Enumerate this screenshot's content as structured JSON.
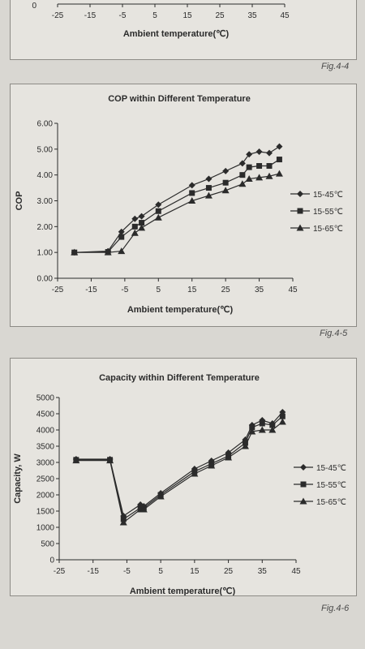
{
  "figures": [
    {
      "caption": "Fig.4-4"
    },
    {
      "caption": "Fig.4-5"
    },
    {
      "caption": "Fig.4-6"
    }
  ],
  "chart_data": [
    {
      "type": "line",
      "title": "",
      "xlabel": "Ambient temperature(℃)",
      "ylabel": "",
      "xticks": [
        -25,
        -15,
        -5,
        5,
        15,
        25,
        35,
        45
      ],
      "yticks": [
        "0"
      ],
      "xlim": [
        -25,
        45
      ],
      "partial": true
    },
    {
      "type": "line",
      "title": "COP within Different Temperature",
      "xlabel": "Ambient temperature(℃)",
      "ylabel": "COP",
      "xlim": [
        -25,
        45
      ],
      "ylim": [
        0,
        6
      ],
      "xticks": [
        -25,
        -15,
        -5,
        5,
        15,
        25,
        35,
        45
      ],
      "yticks": [
        "0.00",
        "1.00",
        "2.00",
        "3.00",
        "4.00",
        "5.00",
        "6.00"
      ],
      "legend": "right",
      "series": [
        {
          "name": "15-45℃",
          "marker": "diamond",
          "x": [
            -20,
            -10,
            -6,
            -2,
            0,
            5,
            15,
            20,
            25,
            30,
            32,
            35,
            38,
            41
          ],
          "y": [
            1.0,
            1.05,
            1.8,
            2.3,
            2.4,
            2.85,
            3.6,
            3.85,
            4.15,
            4.45,
            4.8,
            4.9,
            4.85,
            5.1
          ]
        },
        {
          "name": "15-55℃",
          "marker": "square",
          "x": [
            -20,
            -10,
            -6,
            -2,
            0,
            5,
            15,
            20,
            25,
            30,
            32,
            35,
            38,
            41
          ],
          "y": [
            1.0,
            1.02,
            1.6,
            2.0,
            2.15,
            2.6,
            3.3,
            3.5,
            3.7,
            4.0,
            4.3,
            4.35,
            4.35,
            4.6
          ]
        },
        {
          "name": "15-65℃",
          "marker": "triangle",
          "x": [
            -20,
            -10,
            -6,
            -2,
            0,
            5,
            15,
            20,
            25,
            30,
            32,
            35,
            38,
            41
          ],
          "y": [
            1.0,
            1.0,
            1.05,
            1.75,
            1.95,
            2.35,
            3.0,
            3.2,
            3.4,
            3.65,
            3.85,
            3.9,
            3.95,
            4.05
          ]
        }
      ]
    },
    {
      "type": "line",
      "title": "Capacity within Different Temperature",
      "xlabel": "Ambient temperature(℃)",
      "ylabel": "Capacity, W",
      "xlim": [
        -25,
        45
      ],
      "ylim": [
        0,
        5000
      ],
      "xticks": [
        -25,
        -15,
        -5,
        5,
        15,
        25,
        35,
        45
      ],
      "yticks": [
        "0",
        "500",
        "1000",
        "1500",
        "2000",
        "2500",
        "3000",
        "3500",
        "4000",
        "4500",
        "5000"
      ],
      "legend": "right",
      "series": [
        {
          "name": "15-45℃",
          "marker": "diamond",
          "x": [
            -20,
            -10,
            -6,
            -1,
            0,
            5,
            15,
            20,
            25,
            30,
            32,
            35,
            38,
            41
          ],
          "y": [
            3100,
            3100,
            1350,
            1700,
            1650,
            2050,
            2800,
            3050,
            3300,
            3700,
            4150,
            4300,
            4200,
            4550
          ]
        },
        {
          "name": "15-55℃",
          "marker": "square",
          "x": [
            -20,
            -10,
            -6,
            -1,
            0,
            5,
            15,
            20,
            25,
            30,
            32,
            35,
            38,
            41
          ],
          "y": [
            3080,
            3080,
            1250,
            1600,
            1600,
            2000,
            2720,
            2960,
            3200,
            3600,
            4080,
            4200,
            4150,
            4420
          ]
        },
        {
          "name": "15-65℃",
          "marker": "triangle",
          "x": [
            -20,
            -10,
            -6,
            -1,
            0,
            5,
            15,
            20,
            25,
            30,
            32,
            35,
            38,
            41
          ],
          "y": [
            3060,
            3060,
            1150,
            1550,
            1550,
            1950,
            2650,
            2900,
            3150,
            3500,
            3950,
            4000,
            4000,
            4250
          ]
        }
      ]
    }
  ]
}
